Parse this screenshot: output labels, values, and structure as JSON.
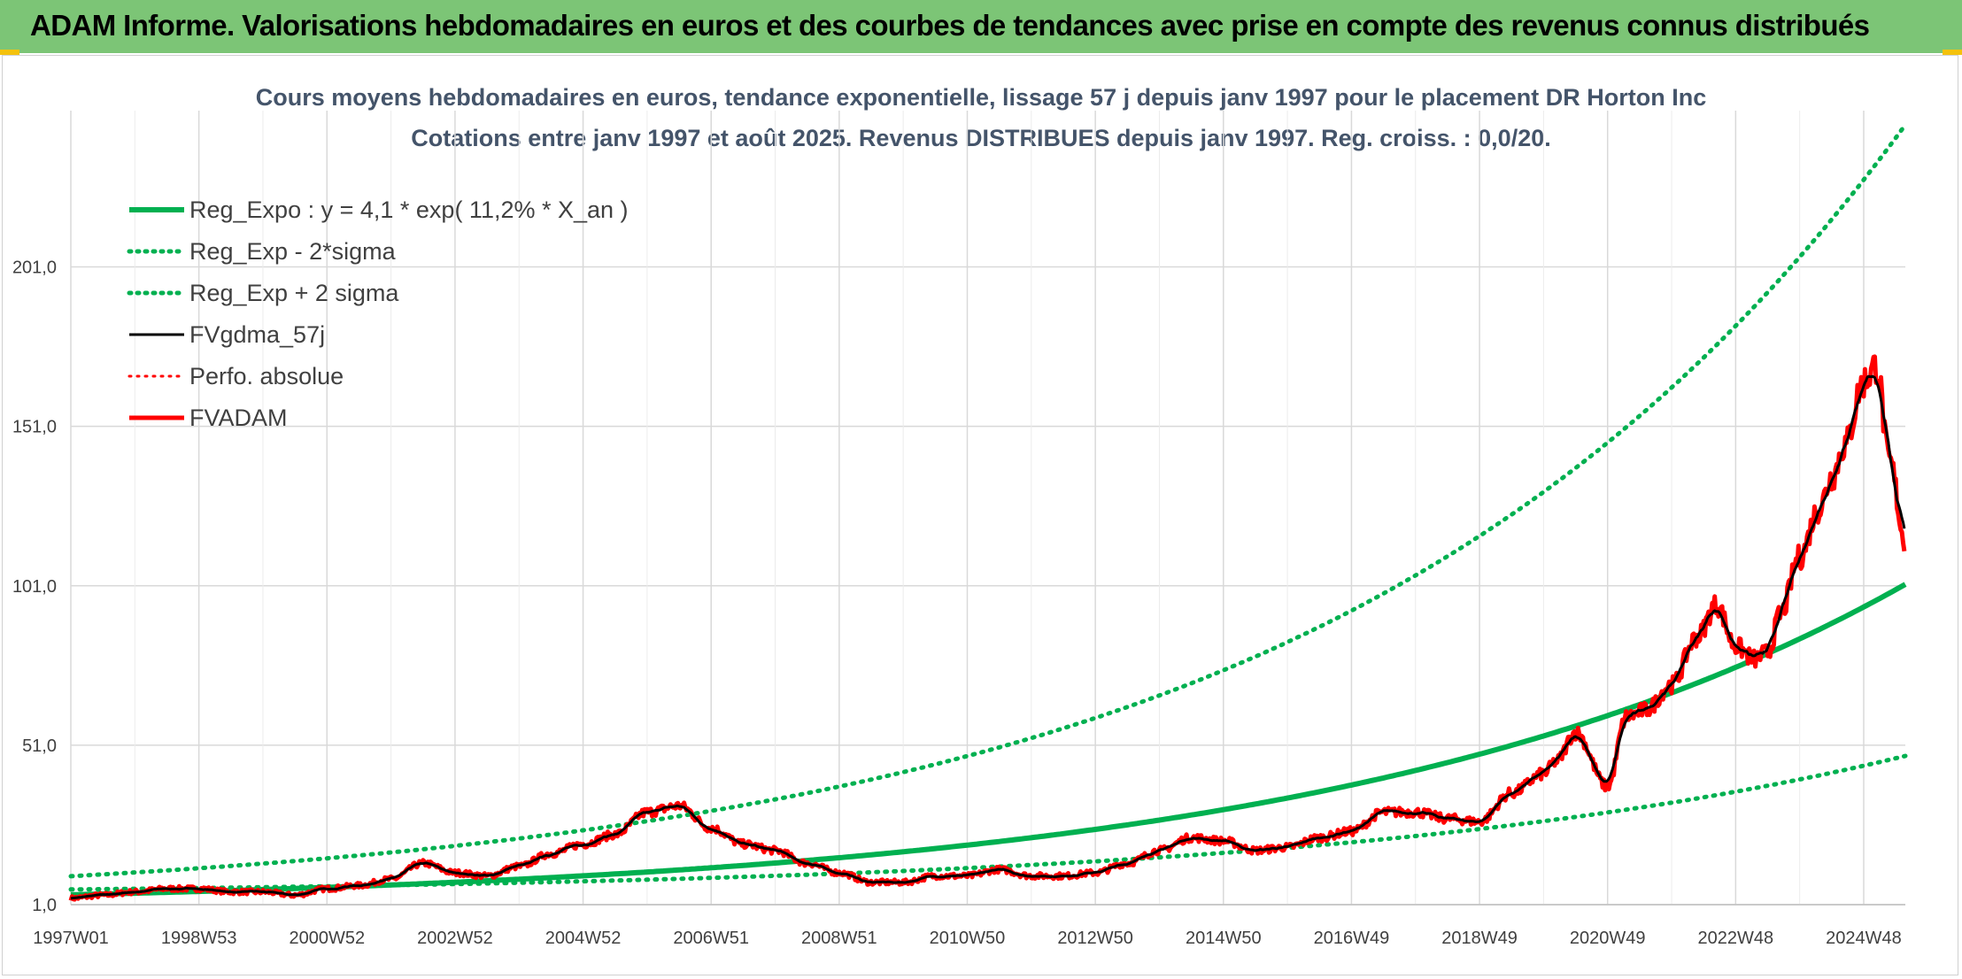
{
  "header": {
    "title": "ADAM Informe. Valorisations hebdomadaires en euros et des courbes de tendances avec prise en compte des revenus connus distribués"
  },
  "chart_data": {
    "type": "line",
    "title_line1": "Cours moyens hebdomadaires en euros, tendance exponentielle, lissage 57 j depuis janv 1997 pour le placement DR Horton Inc",
    "title_line2": "Cotations entre janv 1997 et août 2025. Revenus DISTRIBUES depuis janv 1997. Reg. croiss. : 0,0/20.",
    "x_ticks": [
      "1997W01",
      "1998W53",
      "2000W52",
      "2002W52",
      "2004W52",
      "2006W51",
      "2008W51",
      "2010W50",
      "2012W50",
      "2014W50",
      "2016W49",
      "2018W49",
      "2020W49",
      "2022W48",
      "2024W48"
    ],
    "x_tick_years": [
      1997.0,
      1999.0,
      2001.0,
      2003.0,
      2005.0,
      2007.0,
      2009.0,
      2011.0,
      2013.0,
      2015.0,
      2017.0,
      2019.0,
      2021.0,
      2023.0,
      2025.0
    ],
    "xlim": [
      1997.0,
      2025.65
    ],
    "y_ticks": [
      "1,0",
      "51,0",
      "101,0",
      "151,0",
      "201,0"
    ],
    "y_tick_values": [
      1,
      51,
      101,
      151,
      201
    ],
    "ylim": [
      1,
      250
    ],
    "grid": true,
    "legend_position": "top-left",
    "regression": {
      "a": 4.1,
      "rate": 0.112,
      "band_low_factor": 0.43,
      "band_high_factor": 2.42
    },
    "series": [
      {
        "name": "Reg_Expo : y = 4,1 * exp( 11,2% *  X_an )",
        "color": "#00b050",
        "style": "solid",
        "width": 6
      },
      {
        "name": "Reg_Exp - 2*sigma",
        "color": "#00b050",
        "style": "dotted",
        "width": 5
      },
      {
        "name": "Reg_Exp + 2 sigma",
        "color": "#00b050",
        "style": "dotted",
        "width": 5
      },
      {
        "name": "FVgdma_57j",
        "color": "#000000",
        "style": "solid",
        "width": 3
      },
      {
        "name": "Perfo. absolue",
        "color": "#ff0000",
        "style": "dotted",
        "width": 3
      },
      {
        "name": "FVADAM",
        "color": "#ff0000",
        "style": "solid",
        "width": 5,
        "x": [
          1997.0,
          1997.5,
          1998.0,
          1998.5,
          1999.0,
          1999.5,
          2000.0,
          2000.5,
          2001.0,
          2001.5,
          2002.0,
          2002.5,
          2003.0,
          2003.5,
          2004.0,
          2004.5,
          2005.0,
          2005.5,
          2006.0,
          2006.5,
          2007.0,
          2007.5,
          2008.0,
          2008.5,
          2009.0,
          2009.5,
          2010.0,
          2010.5,
          2011.0,
          2011.5,
          2012.0,
          2012.5,
          2013.0,
          2013.5,
          2014.0,
          2014.5,
          2015.0,
          2015.5,
          2016.0,
          2016.5,
          2017.0,
          2017.5,
          2018.0,
          2018.5,
          2019.0,
          2019.5,
          2020.0,
          2020.2,
          2020.5,
          2021.0,
          2021.3,
          2021.6,
          2022.0,
          2022.4,
          2022.7,
          2023.0,
          2023.3,
          2023.5,
          2023.7,
          2024.0,
          2024.3,
          2024.5,
          2024.7,
          2025.0,
          2025.2,
          2025.4,
          2025.65
        ],
        "y": [
          3,
          4,
          5,
          6,
          6,
          5,
          5,
          4,
          6,
          7,
          9,
          14,
          11,
          10,
          13,
          17,
          20,
          23,
          30,
          32,
          25,
          20,
          18,
          14,
          11,
          8,
          8,
          10,
          10,
          12,
          10,
          10,
          11,
          14,
          18,
          22,
          21,
          18,
          19,
          22,
          24,
          30,
          30,
          28,
          27,
          36,
          42,
          46,
          55,
          38,
          60,
          62,
          70,
          85,
          95,
          82,
          78,
          80,
          92,
          110,
          125,
          135,
          145,
          165,
          170,
          140,
          115
        ]
      }
    ]
  }
}
